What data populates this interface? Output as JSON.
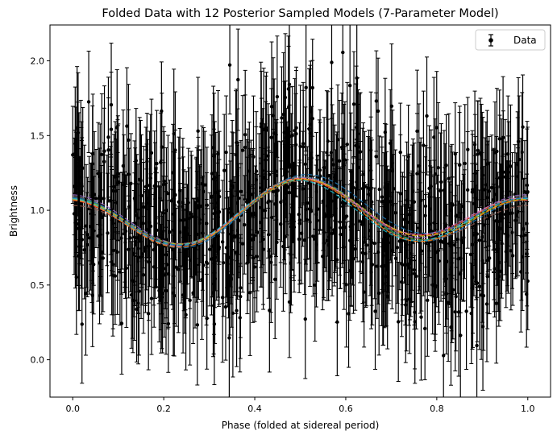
{
  "chart_data": {
    "type": "scatter",
    "title": "Folded Data with 12 Posterior Sampled Models (7-Parameter Model)",
    "xlabel": "Phase (folded at sidereal period)",
    "ylabel": "Brightness",
    "xlim": [
      -0.05,
      1.05
    ],
    "ylim": [
      -0.25,
      2.24
    ],
    "xticks": [
      0.0,
      0.2,
      0.4,
      0.6,
      0.8,
      1.0
    ],
    "xtick_labels": [
      "0.0",
      "0.2",
      "0.4",
      "0.6",
      "0.8",
      "1.0"
    ],
    "yticks": [
      0.0,
      0.5,
      1.0,
      1.5,
      2.0
    ],
    "ytick_labels": [
      "0.0",
      "0.5",
      "1.0",
      "1.5",
      "2.0"
    ],
    "grid": false,
    "legend": {
      "position": "top-right",
      "entries": [
        "Data"
      ]
    },
    "data_series": {
      "name": "Data",
      "color": "#000000",
      "n_points": 900,
      "typical_error": 0.38,
      "model_form": {
        "mean": 0.97,
        "terms": [
          {
            "harmonic": 1,
            "amplitude": 0.07,
            "phase_deg": 160
          },
          {
            "harmonic": 2,
            "amplitude": 0.17,
            "phase_deg": 0
          }
        ]
      },
      "scatter_sd": 0.3
    },
    "models": [
      {
        "color": "#1f77b4",
        "mean": 0.96,
        "a1": 0.08,
        "p1": 162,
        "a2": 0.185,
        "p2": -3
      },
      {
        "color": "#ff7f0e",
        "mean": 0.975,
        "a1": 0.07,
        "p1": 158,
        "a2": 0.17,
        "p2": 2
      },
      {
        "color": "#2ca02c",
        "mean": 0.965,
        "a1": 0.065,
        "p1": 165,
        "a2": 0.175,
        "p2": -1
      },
      {
        "color": "#d62728",
        "mean": 0.97,
        "a1": 0.075,
        "p1": 155,
        "a2": 0.165,
        "p2": 3
      },
      {
        "color": "#9467bd",
        "mean": 0.98,
        "a1": 0.06,
        "p1": 160,
        "a2": 0.18,
        "p2": 0
      },
      {
        "color": "#8c564b",
        "mean": 0.955,
        "a1": 0.085,
        "p1": 168,
        "a2": 0.16,
        "p2": -4
      },
      {
        "color": "#e377c2",
        "mean": 0.975,
        "a1": 0.078,
        "p1": 152,
        "a2": 0.172,
        "p2": 4
      },
      {
        "color": "#7f7f7f",
        "mean": 0.968,
        "a1": 0.068,
        "p1": 163,
        "a2": 0.19,
        "p2": 1
      },
      {
        "color": "#bcbd22",
        "mean": 0.972,
        "a1": 0.072,
        "p1": 157,
        "a2": 0.168,
        "p2": -2
      },
      {
        "color": "#17becf",
        "mean": 0.962,
        "a1": 0.062,
        "p1": 170,
        "a2": 0.178,
        "p2": 5
      },
      {
        "color": "#1f77b4",
        "mean": 0.985,
        "a1": 0.088,
        "p1": 150,
        "a2": 0.175,
        "p2": -5
      },
      {
        "color": "#ff7f0e",
        "mean": 0.958,
        "a1": 0.074,
        "p1": 166,
        "a2": 0.182,
        "p2": 2
      }
    ]
  }
}
